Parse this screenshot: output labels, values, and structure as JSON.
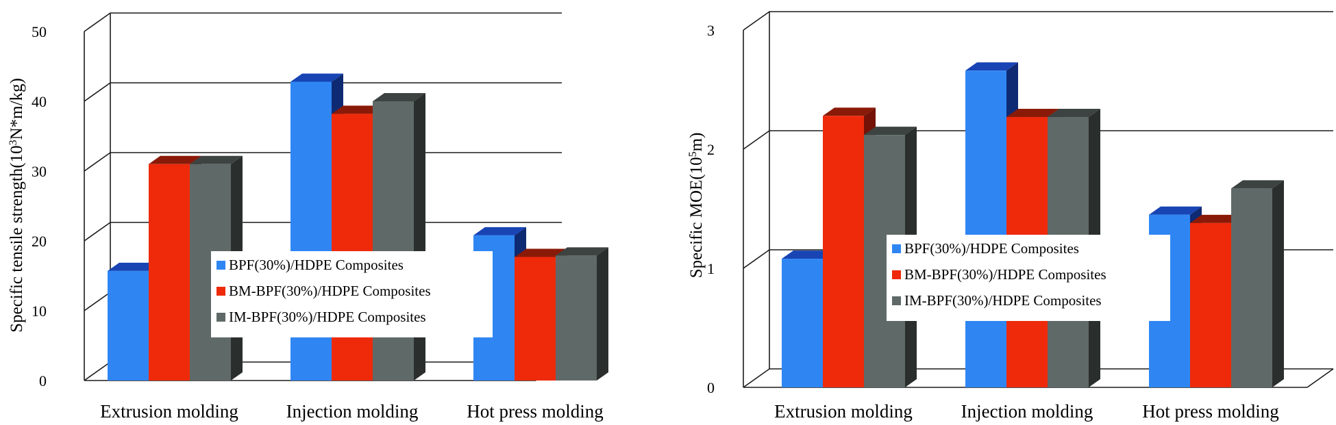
{
  "chart_data": [
    {
      "type": "bar",
      "style": "3d-clustered",
      "title": "",
      "xlabel": "",
      "ylabel_pre": "Specific tensile strength(10",
      "ylabel_sup": "3",
      "ylabel_post": "N*m/kg)",
      "ylim": [
        0,
        50
      ],
      "yticks": [
        0,
        10,
        20,
        30,
        40,
        50
      ],
      "categories": [
        "Extrusion molding",
        "Injection molding",
        "Hot press molding"
      ],
      "series": [
        {
          "name": "BPF(30%)/HDPE Composites",
          "values": [
            15.7,
            42.8,
            20.8
          ]
        },
        {
          "name": "BM-BPF(30%)/HDPE Composites",
          "values": [
            31.0,
            38.2,
            17.7
          ]
        },
        {
          "name": "IM-BPF(30%)/HDPE Composites",
          "values": [
            31.0,
            40.0,
            17.9
          ]
        }
      ],
      "legend": "center-right"
    },
    {
      "type": "bar",
      "style": "3d-clustered",
      "title": "",
      "xlabel": "",
      "ylabel_pre": "Specific MOE(10",
      "ylabel_sup": "5",
      "ylabel_post": "m)",
      "ylim": [
        0,
        3
      ],
      "yticks": [
        0,
        1,
        2,
        3
      ],
      "categories": [
        "Extrusion molding",
        "Injection molding",
        "Hot press molding"
      ],
      "series": [
        {
          "name": "BPF(30%)/HDPE Composites",
          "values": [
            1.08,
            2.66,
            1.45
          ]
        },
        {
          "name": "BM-BPF(30%)/HDPE Composites",
          "values": [
            2.28,
            2.27,
            1.38
          ]
        },
        {
          "name": "IM-BPF(30%)/HDPE Composites",
          "values": [
            2.12,
            2.27,
            1.67
          ]
        }
      ],
      "legend": "center-left"
    }
  ],
  "colors": {
    "series_front": [
      "#2f86f3",
      "#ee2a0b",
      "#5f6a68"
    ],
    "series_top": [
      "#1844b4",
      "#8a1a08",
      "#3c4341"
    ],
    "series_side": [
      "#0e2a73",
      "#741207",
      "#2a2f2e"
    ],
    "legend_bg": "#ffffff"
  }
}
